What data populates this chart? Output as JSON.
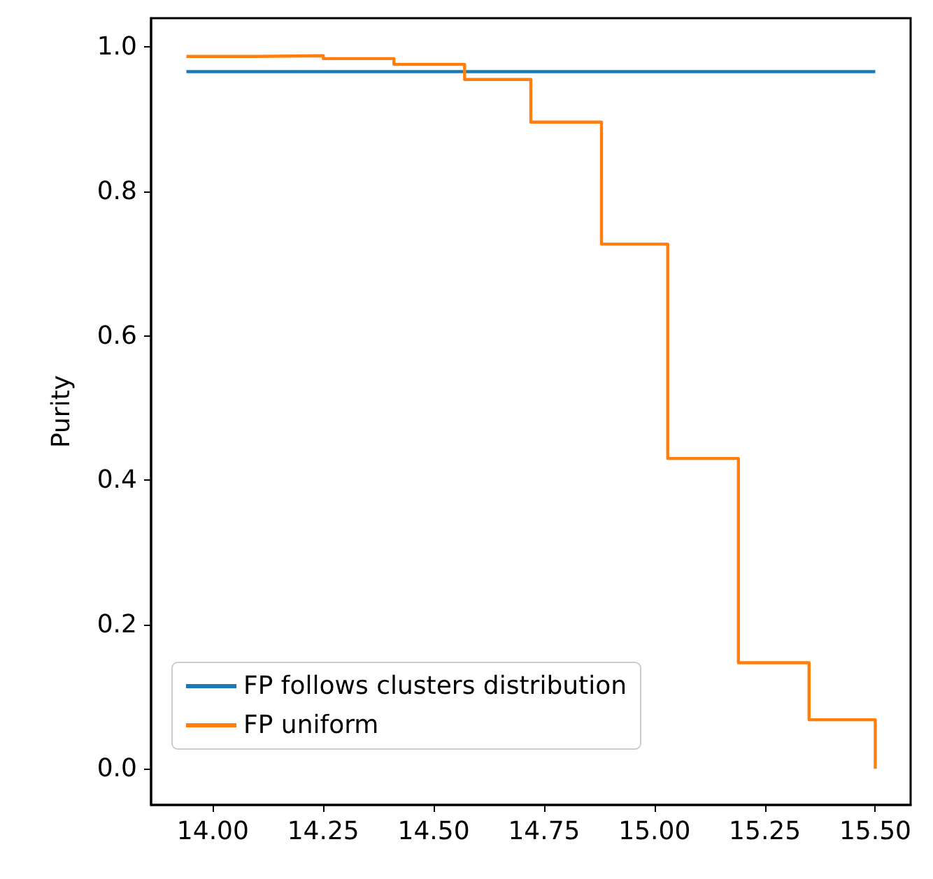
{
  "chart_data": {
    "type": "line",
    "ylabel": "Purity",
    "xlim": [
      13.86,
      15.58
    ],
    "ylim": [
      -0.05,
      1.04
    ],
    "xticks": [
      {
        "value": 14,
        "label": "14.00"
      },
      {
        "value": 14.25,
        "label": "14.25"
      },
      {
        "value": 14.5,
        "label": "14.50"
      },
      {
        "value": 14.75,
        "label": "14.75"
      },
      {
        "value": 15,
        "label": "15.00"
      },
      {
        "value": 15.25,
        "label": "15.25"
      },
      {
        "value": 15.5,
        "label": "15.50"
      }
    ],
    "yticks": [
      {
        "value": 0,
        "label": "0.0"
      },
      {
        "value": 0.2,
        "label": "0.2"
      },
      {
        "value": 0.4,
        "label": "0.4"
      },
      {
        "value": 0.6,
        "label": "0.6"
      },
      {
        "value": 0.8,
        "label": "0.8"
      },
      {
        "value": 1,
        "label": "1.0"
      }
    ],
    "series": [
      {
        "name": "FP follows clusters distribution",
        "color": "#1f77b4",
        "x": [
          13.94,
          15.5
        ],
        "values": [
          0.966,
          0.966
        ]
      },
      {
        "name": "FP uniform",
        "color": "#ff7f0e",
        "type": "step",
        "x": [
          13.94,
          14.1,
          14.25,
          14.41,
          14.57,
          14.72,
          14.88,
          15.03,
          15.19,
          15.35,
          15.5
        ],
        "values": [
          0.987,
          0.988,
          0.984,
          0.976,
          0.955,
          0.896,
          0.727,
          0.43,
          0.147,
          0.068,
          0.0
        ]
      }
    ],
    "legend": "bottom left",
    "grid": false,
    "marker": "none"
  }
}
